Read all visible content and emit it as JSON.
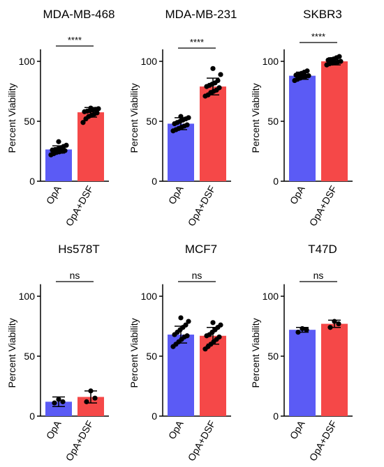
{
  "chart_data": [
    {
      "type": "bar",
      "title": "MDA-MB-468",
      "ylabel": "Percent Viability",
      "categories": [
        "OpA",
        "OpA+DSF"
      ],
      "values": [
        26.5,
        57.5
      ],
      "errors": [
        3,
        4
      ],
      "ylim": [
        0,
        110
      ],
      "yticks": [
        "0",
        "50",
        "100"
      ],
      "significance": "****",
      "points": [
        [
          22,
          23,
          24,
          24.5,
          25,
          25.5,
          26,
          26.5,
          27,
          28,
          29,
          30,
          33
        ],
        [
          49,
          52,
          54,
          55,
          56,
          57,
          58,
          58.5,
          59,
          59.5,
          60,
          60.5,
          61
        ]
      ]
    },
    {
      "type": "bar",
      "title": "MDA-MB-231",
      "ylabel": "Percent Viability",
      "categories": [
        "OpA",
        "OpA+DSF"
      ],
      "values": [
        48,
        79
      ],
      "errors": [
        5,
        7
      ],
      "ylim": [
        0,
        110
      ],
      "yticks": [
        "0",
        "50",
        "100"
      ],
      "significance": "****",
      "points": [
        [
          42,
          43,
          44,
          45,
          46,
          47,
          48,
          49,
          50,
          51,
          52,
          53,
          54
        ],
        [
          71,
          72,
          74,
          75,
          76,
          78,
          79,
          80,
          81,
          82,
          84,
          89,
          94
        ]
      ]
    },
    {
      "type": "bar",
      "title": "SKBR3",
      "ylabel": "Percent Viability",
      "categories": [
        "OpA",
        "OpA+DSF"
      ],
      "values": [
        88,
        100
      ],
      "errors": [
        3,
        3
      ],
      "ylim": [
        0,
        110
      ],
      "yticks": [
        "0",
        "50",
        "100"
      ],
      "significance": "****",
      "points": [
        [
          84,
          85,
          86,
          87,
          87.5,
          88,
          88.5,
          89,
          90,
          91,
          92
        ],
        [
          97,
          98,
          98.5,
          99,
          99.5,
          100,
          101,
          101.5,
          102,
          103,
          104
        ]
      ]
    },
    {
      "type": "bar",
      "title": "Hs578T",
      "ylabel": "Percent Viability",
      "categories": [
        "OpA",
        "OpA+DSF"
      ],
      "values": [
        12,
        16
      ],
      "errors": [
        4,
        5
      ],
      "ylim": [
        0,
        110
      ],
      "yticks": [
        "0",
        "50",
        "100"
      ],
      "significance": "ns",
      "points": [
        [
          11,
          12,
          14
        ],
        [
          12,
          15,
          21
        ]
      ]
    },
    {
      "type": "bar",
      "title": "MCF7",
      "ylabel": "Percent Viability",
      "categories": [
        "OpA",
        "OpA+DSF"
      ],
      "values": [
        68,
        67
      ],
      "errors": [
        7,
        7
      ],
      "ylim": [
        0,
        110
      ],
      "yticks": [
        "0",
        "50",
        "100"
      ],
      "significance": "ns",
      "points": [
        [
          58,
          60,
          62,
          64,
          66,
          67,
          68,
          70,
          72,
          74,
          76,
          79,
          82
        ],
        [
          56,
          58,
          60,
          62,
          64,
          66,
          67,
          68,
          70,
          72,
          74,
          76,
          78
        ]
      ]
    },
    {
      "type": "bar",
      "title": "T47D",
      "ylabel": "Percent Viability",
      "categories": [
        "OpA",
        "OpA+DSF"
      ],
      "values": [
        72,
        77
      ],
      "errors": [
        2,
        3
      ],
      "ylim": [
        0,
        110
      ],
      "yticks": [
        "0",
        "50",
        "100"
      ],
      "significance": "ns",
      "points": [
        [
          70,
          72,
          73
        ],
        [
          74,
          77,
          79
        ]
      ]
    }
  ],
  "colors": {
    "OpA": "#5b5bf5",
    "OpA+DSF": "#f54848"
  }
}
